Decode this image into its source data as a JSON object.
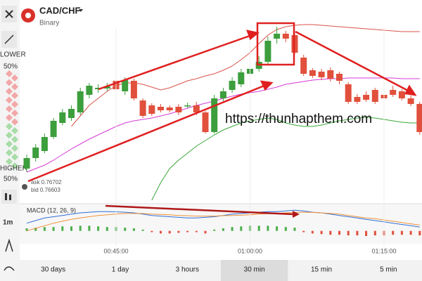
{
  "header": {
    "title": "CAD/CHF",
    "subtitle": "Binary"
  },
  "sidebar": {
    "lower": "LOWER",
    "lower_pct": "50%",
    "higher": "HIGHER",
    "higher_pct": "50%",
    "interval": "1m"
  },
  "quote": {
    "ask": "ask 0.76702",
    "bid": "bid 0.76603"
  },
  "watermark": "https://thunhapthem.com",
  "tabs": [
    "30 days",
    "1 day",
    "3 hours",
    "30 min",
    "15 min",
    "5 min"
  ],
  "selected_tab": "30 min",
  "chart_data": {
    "type": "candlestick",
    "categories": [
      null,
      null,
      null,
      null,
      null,
      null,
      null,
      null,
      null,
      null,
      "00:45:00",
      null,
      null,
      null,
      null,
      null,
      null,
      null,
      null,
      null,
      null,
      null,
      null,
      null,
      null,
      "01:00:00",
      null,
      null,
      null,
      null,
      null,
      null,
      null,
      null,
      null,
      null,
      null,
      null,
      null,
      null,
      "01:15:00",
      null,
      null,
      null,
      null
    ],
    "open": [
      50,
      65,
      75,
      95,
      115,
      122,
      130,
      155,
      163,
      164,
      175,
      160,
      175,
      147,
      140,
      138,
      137,
      138,
      139,
      140,
      130,
      102,
      150,
      162,
      170,
      185,
      192,
      202,
      235,
      242,
      240,
      208,
      190,
      188,
      190,
      185,
      170,
      152,
      155,
      162,
      155,
      162,
      160,
      150,
      142
    ],
    "high": [
      70,
      85,
      100,
      122,
      135,
      140,
      165,
      172,
      170,
      172,
      180,
      180,
      178,
      150,
      143,
      142,
      140,
      142,
      144,
      145,
      132,
      155,
      165,
      180,
      192,
      198,
      210,
      238,
      252,
      246,
      244,
      212,
      193,
      192,
      194,
      188,
      173,
      156,
      160,
      165,
      158,
      168,
      163,
      154,
      145
    ],
    "low": [
      45,
      60,
      72,
      92,
      112,
      118,
      126,
      150,
      158,
      160,
      160,
      155,
      147,
      122,
      125,
      130,
      130,
      126,
      136,
      126,
      100,
      100,
      146,
      158,
      166,
      180,
      188,
      198,
      228,
      230,
      212,
      182,
      179,
      176,
      174,
      170,
      142,
      142,
      145,
      142,
      147,
      152,
      147,
      139,
      98
    ],
    "close": [
      65,
      80,
      95,
      118,
      130,
      135,
      160,
      168,
      165,
      167,
      163,
      176,
      150,
      125,
      128,
      133,
      133,
      130,
      140,
      130,
      102,
      150,
      160,
      175,
      187,
      192,
      202,
      232,
      242,
      235,
      215,
      185,
      182,
      180,
      178,
      175,
      145,
      145,
      148,
      145,
      150,
      155,
      150,
      142,
      102
    ],
    "up_color": "#3c9e3c",
    "down_color": "#e0503c",
    "ylim": [
      0,
      260
    ],
    "bands": [
      {
        "color": "#d9534a",
        "values": [
          null,
          null,
          null,
          null,
          null,
          110,
          125,
          140,
          150,
          160,
          168,
          172,
          172,
          170,
          166,
          162,
          165,
          170,
          175,
          178,
          182,
          185,
          190,
          196,
          205,
          215,
          228,
          240,
          248,
          252,
          254,
          255,
          255,
          254,
          253,
          252,
          251,
          250,
          249,
          248,
          247,
          246,
          245,
          245,
          245
        ]
      },
      {
        "color": "#d63bd6",
        "values": [
          45,
          50,
          55,
          62,
          70,
          78,
          85,
          92,
          98,
          104,
          110,
          115,
          118,
          120,
          122,
          125,
          128,
          132,
          136,
          140,
          143,
          146,
          150,
          153,
          156,
          158,
          160,
          163,
          166,
          170,
          172,
          174,
          176,
          177,
          178,
          178,
          179,
          179,
          179,
          179,
          179,
          179,
          178,
          178,
          178
        ]
      },
      {
        "color": "#3aa83a",
        "values": [
          null,
          null,
          null,
          null,
          null,
          null,
          null,
          null,
          null,
          null,
          null,
          null,
          null,
          null,
          5,
          30,
          50,
          62,
          72,
          82,
          90,
          98,
          105,
          110,
          115,
          118,
          120,
          122,
          120,
          115,
          112,
          110,
          110,
          112,
          115,
          118,
          120,
          122,
          123,
          122,
          120,
          118,
          116,
          115,
          115
        ]
      }
    ],
    "macd": {
      "label": "MACD (12, 26, 9)",
      "ylim": [
        -1,
        2
      ],
      "histogram": [
        0.2,
        0.25,
        0.3,
        0.3,
        0.35,
        0.35,
        0.4,
        0.4,
        0.35,
        0.3,
        0.3,
        0.25,
        0.2,
        0.1,
        -0.1,
        -0.2,
        -0.2,
        -0.15,
        -0.1,
        -0.1,
        -0.2,
        0.1,
        0.2,
        0.3,
        0.35,
        0.4,
        0.4,
        0.4,
        0.35,
        0.3,
        0.25,
        -0.1,
        -0.2,
        -0.25,
        -0.3,
        -0.3,
        -0.35,
        -0.35,
        -0.4,
        -0.35,
        -0.35,
        -0.3,
        -0.3,
        -0.3,
        -0.35
      ],
      "up_color": "#4cae4c",
      "down_color": "#e0503c",
      "line": {
        "color": "#2f6fd6",
        "values": [
          0.6,
          0.8,
          1.0,
          1.1,
          1.2,
          1.3,
          1.4,
          1.45,
          1.5,
          1.5,
          1.48,
          1.45,
          1.4,
          1.3,
          1.2,
          1.15,
          1.1,
          1.05,
          1.0,
          1.0,
          1.05,
          1.1,
          1.2,
          1.3,
          1.35,
          1.4,
          1.45,
          1.5,
          1.5,
          1.55,
          1.6,
          1.55,
          1.45,
          1.4,
          1.3,
          1.2,
          1.1,
          1.0,
          0.9,
          0.8,
          0.7,
          0.6,
          0.5,
          0.4,
          0.3
        ]
      },
      "signal": {
        "color": "#f0923a",
        "values": [
          0.0,
          0.2,
          0.4,
          0.6,
          0.75,
          0.9,
          1.0,
          1.1,
          1.2,
          1.25,
          1.3,
          1.35,
          1.35,
          1.35,
          1.3,
          1.28,
          1.25,
          1.2,
          1.18,
          1.15,
          1.15,
          1.15,
          1.18,
          1.2,
          1.22,
          1.25,
          1.3,
          1.33,
          1.36,
          1.4,
          1.43,
          1.45,
          1.43,
          1.4,
          1.35,
          1.3,
          1.2,
          1.1,
          1.0,
          0.95,
          0.85,
          0.75,
          0.65,
          0.55,
          0.45
        ]
      }
    }
  }
}
